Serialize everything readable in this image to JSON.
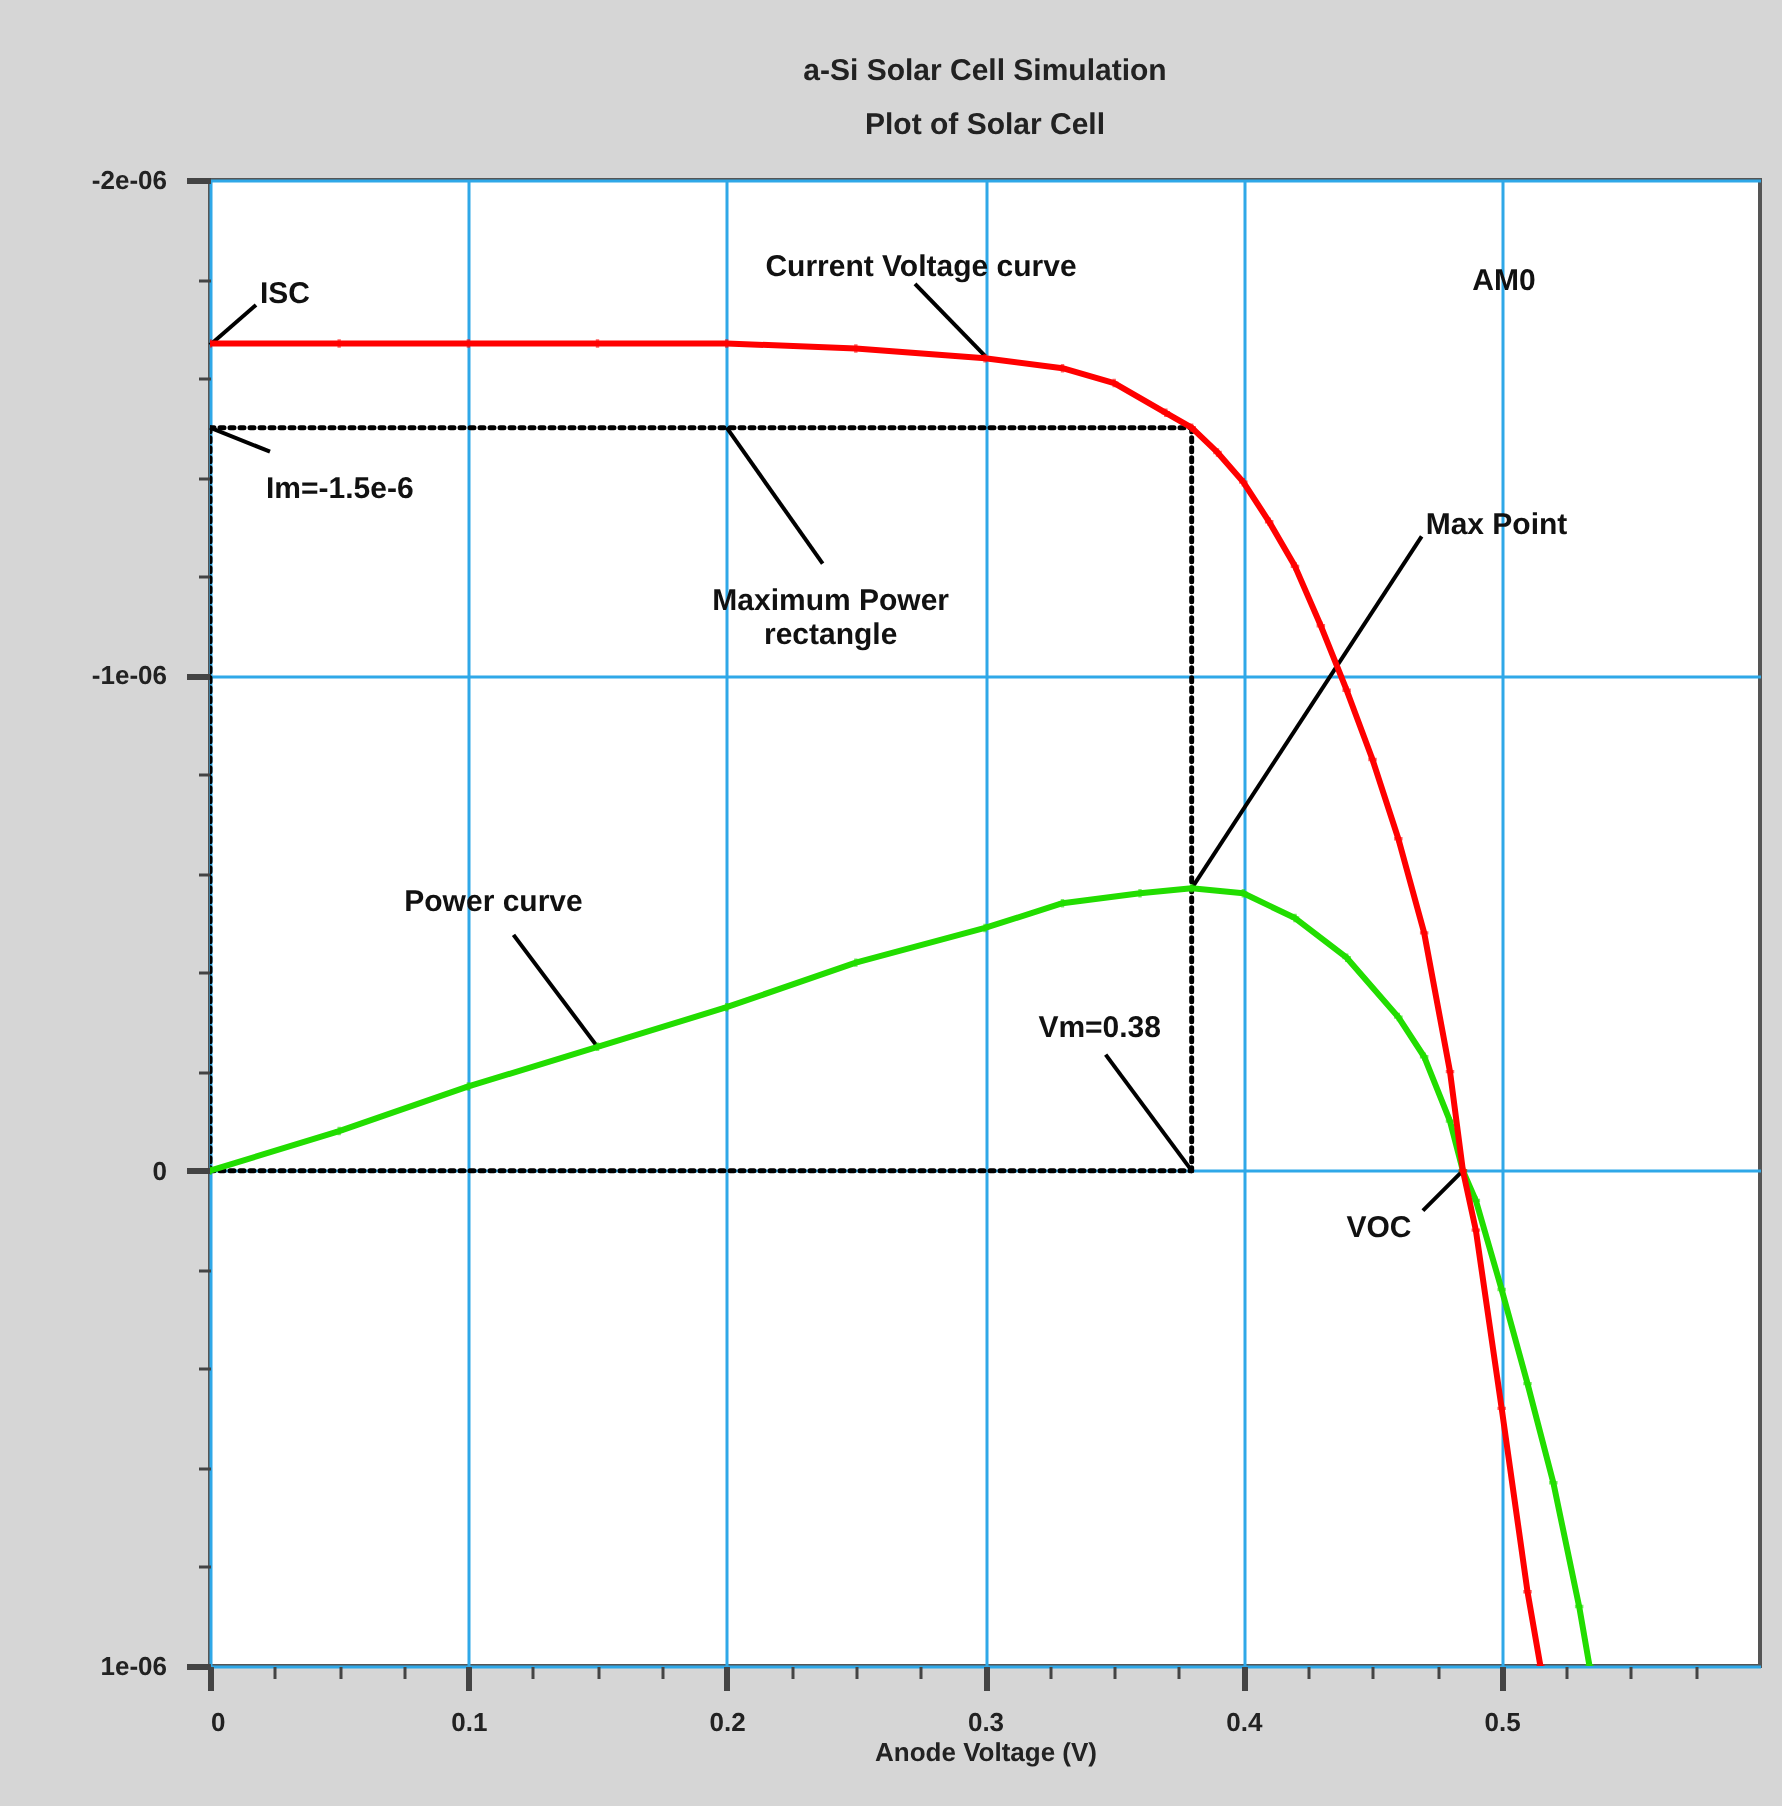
{
  "chart_data": {
    "type": "line",
    "title": "a-Si Solar Cell Simulation",
    "subtitle": "Plot of Solar Cell",
    "xlabel": "Anode Voltage (V)",
    "xlim": [
      0,
      0.6
    ],
    "ylim": [
      1e-06,
      -2e-06
    ],
    "xticks": [
      {
        "value": 0,
        "label": "0"
      },
      {
        "value": 0.025,
        "label": null
      },
      {
        "value": 0.05,
        "label": null
      },
      {
        "value": 0.075,
        "label": null
      },
      {
        "value": 0.1,
        "label": "0.1"
      },
      {
        "value": 0.125,
        "label": null
      },
      {
        "value": 0.15,
        "label": null
      },
      {
        "value": 0.175,
        "label": null
      },
      {
        "value": 0.2,
        "label": "0.2"
      },
      {
        "value": 0.225,
        "label": null
      },
      {
        "value": 0.25,
        "label": null
      },
      {
        "value": 0.275,
        "label": null
      },
      {
        "value": 0.3,
        "label": "0.3"
      },
      {
        "value": 0.325,
        "label": null
      },
      {
        "value": 0.35,
        "label": null
      },
      {
        "value": 0.375,
        "label": null
      },
      {
        "value": 0.4,
        "label": "0.4"
      },
      {
        "value": 0.425,
        "label": null
      },
      {
        "value": 0.45,
        "label": null
      },
      {
        "value": 0.475,
        "label": null
      },
      {
        "value": 0.5,
        "label": "0.5"
      },
      {
        "value": 0.525,
        "label": null
      },
      {
        "value": 0.55,
        "label": null
      },
      {
        "value": 0.575,
        "label": null
      }
    ],
    "yticks": [
      {
        "value": -2e-06,
        "label": "-2e-06"
      },
      {
        "value": -1.8e-06,
        "label": null
      },
      {
        "value": -1.6e-06,
        "label": null
      },
      {
        "value": -1.4e-06,
        "label": null
      },
      {
        "value": -1.2e-06,
        "label": null
      },
      {
        "value": -1e-06,
        "label": "-1e-06"
      },
      {
        "value": -8e-07,
        "label": null
      },
      {
        "value": -6e-07,
        "label": null
      },
      {
        "value": -4e-07,
        "label": null
      },
      {
        "value": -2e-07,
        "label": null
      },
      {
        "value": 0,
        "label": "0"
      },
      {
        "value": 2e-07,
        "label": null
      },
      {
        "value": 4e-07,
        "label": null
      },
      {
        "value": 6e-07,
        "label": null
      },
      {
        "value": 8e-07,
        "label": null
      },
      {
        "value": 1e-06,
        "label": "1e-06"
      }
    ],
    "grid": true,
    "marker": "cross",
    "line_style": "solid",
    "series": [
      {
        "color": "#ff0000",
        "x": [
          0,
          0.05,
          0.1,
          0.15,
          0.2,
          0.25,
          0.3,
          0.33,
          0.35,
          0.37,
          0.38,
          0.39,
          0.4,
          0.41,
          0.42,
          0.43,
          0.44,
          0.45,
          0.46,
          0.47,
          0.48,
          0.485,
          0.49,
          0.5,
          0.51,
          0.515
        ],
        "values": [
          -1.67e-06,
          -1.67e-06,
          -1.67e-06,
          -1.67e-06,
          -1.67e-06,
          -1.66e-06,
          -1.64e-06,
          -1.62e-06,
          -1.59e-06,
          -1.53e-06,
          -1.5e-06,
          -1.45e-06,
          -1.39e-06,
          -1.31e-06,
          -1.22e-06,
          -1.1e-06,
          -9.7e-07,
          -8.3e-07,
          -6.7e-07,
          -4.8e-07,
          -2e-07,
          0,
          1.2e-07,
          4.8e-07,
          8.5e-07,
          1e-06
        ]
      },
      {
        "color": "#22dd00",
        "x": [
          0,
          0.05,
          0.1,
          0.15,
          0.2,
          0.25,
          0.3,
          0.33,
          0.36,
          0.38,
          0.4,
          0.42,
          0.44,
          0.46,
          0.47,
          0.48,
          0.485,
          0.49,
          0.5,
          0.51,
          0.52,
          0.53,
          0.534
        ],
        "values": [
          0,
          -8e-08,
          -1.7e-07,
          -2.5e-07,
          -3.3e-07,
          -4.2e-07,
          -4.9e-07,
          -5.4e-07,
          -5.6e-07,
          -5.7e-07,
          -5.6e-07,
          -5.1e-07,
          -4.3e-07,
          -3.1e-07,
          -2.3e-07,
          -1e-07,
          0,
          6e-08,
          2.4e-07,
          4.3e-07,
          6.3e-07,
          8.8e-07,
          1e-06
        ]
      },
      {
        "color": "#000000",
        "type": "line",
        "line_style": "dotted",
        "marker": "none",
        "x": [
          0,
          0.38
        ],
        "values": [
          -1.5e-06,
          -1.5e-06
        ]
      },
      {
        "color": "#000000",
        "type": "line",
        "line_style": "dotted",
        "marker": "none",
        "x": [
          0.38,
          0.38
        ],
        "values": [
          -1.5e-06,
          0
        ]
      },
      {
        "color": "#000000",
        "type": "line",
        "line_style": "dotted",
        "marker": "none",
        "x": [
          0,
          0.38
        ],
        "values": [
          0,
          0
        ]
      },
      {
        "color": "#000000",
        "type": "line",
        "line_style": "dotted",
        "marker": "none",
        "x": [
          0,
          0
        ],
        "values": [
          -1.5e-06,
          0
        ]
      }
    ],
    "annotations": [
      {
        "text": "ISC",
        "x": 0,
        "y": -1.667e-06
      },
      {
        "text": "Current Voltage curve",
        "x": 0.3,
        "y": -1.645e-06
      },
      "AM0",
      {
        "text": "Im=-1.5e-6",
        "x": 0,
        "y": -1.5e-06
      },
      {
        "text": "Maximum Power\nrectangle",
        "x": 0.2,
        "y": -1.5e-06
      },
      {
        "text": "Max Point",
        "x": 0.38,
        "y": -5.7e-07
      },
      {
        "text": "Power curve",
        "x": 0.15,
        "y": -2.5e-07
      },
      {
        "text": "Vm=0.38",
        "x": 0.38,
        "y": 0
      },
      {
        "text": "VOC",
        "x": 0.485,
        "y": 0
      }
    ]
  }
}
